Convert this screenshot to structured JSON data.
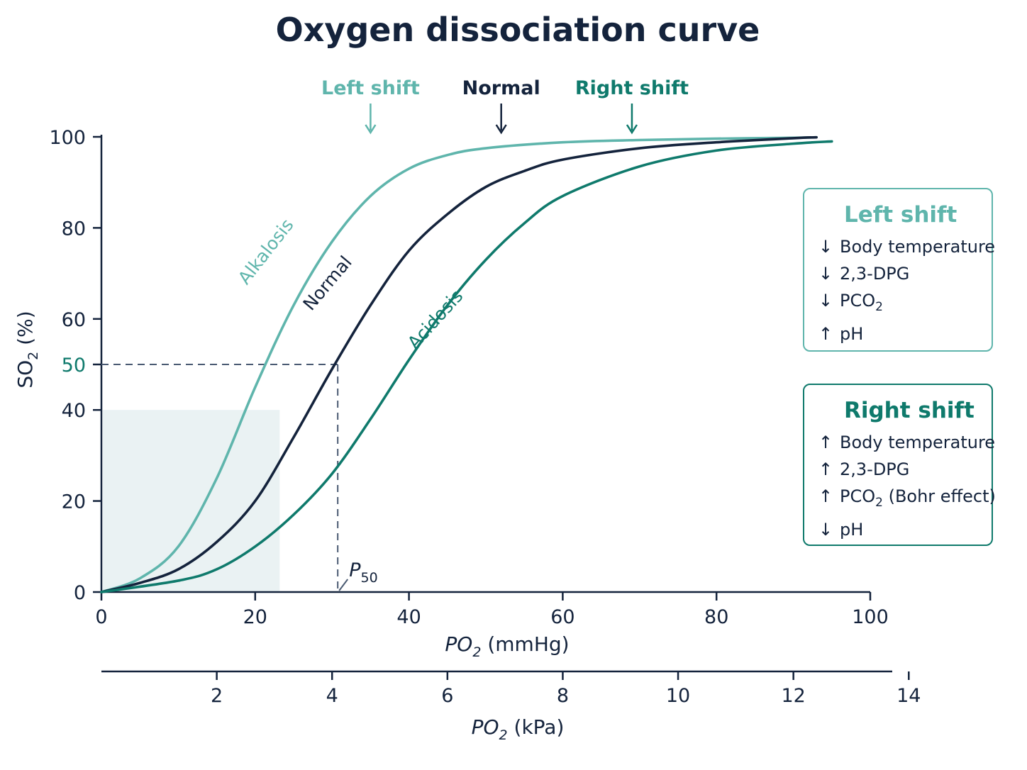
{
  "chart_data": {
    "type": "line",
    "title": "Oxygen dissociation curve",
    "xlabel_main": "PO",
    "xlabel_sub": "2",
    "xlabel_unit": " (mmHg)",
    "x2label_main": "PO",
    "x2label_sub": "2",
    "x2label_unit": " (kPa)",
    "ylabel_main": "SO",
    "ylabel_sub": "2",
    "ylabel_unit": " (%)",
    "xlim": [
      0,
      100
    ],
    "ylim": [
      0,
      100
    ],
    "x_ticks": [
      "0",
      "20",
      "40",
      "60",
      "80",
      "100"
    ],
    "y_ticks": [
      "0",
      "20",
      "40",
      "50",
      "60",
      "80",
      "100"
    ],
    "x2_ticks": [
      "2",
      "4",
      "6",
      "8",
      "10",
      "12",
      "14"
    ],
    "series": [
      {
        "name": "Alkalosis",
        "color": "#5fb5ac",
        "x": [
          0,
          5,
          10,
          15,
          20,
          25,
          30,
          35,
          40,
          45,
          50,
          60,
          70,
          80,
          90,
          93
        ],
        "y": [
          0,
          3,
          10,
          25,
          45,
          63,
          77,
          87,
          93,
          96,
          97.5,
          98.8,
          99.3,
          99.6,
          99.8,
          99.9
        ]
      },
      {
        "name": "Normal",
        "color": "#14233c",
        "x": [
          0,
          5,
          10,
          15,
          20,
          25,
          30,
          35,
          40,
          45,
          50,
          55,
          60,
          70,
          80,
          90,
          93
        ],
        "y": [
          0,
          2,
          5,
          11,
          20,
          34,
          49,
          63,
          75,
          83,
          89,
          92.5,
          95,
          97.5,
          98.8,
          99.7,
          99.9
        ]
      },
      {
        "name": "Acidosis",
        "color": "#0f7a6c",
        "x": [
          0,
          10,
          15,
          20,
          25,
          30,
          35,
          40,
          45,
          50,
          55,
          60,
          70,
          80,
          90,
          95
        ],
        "y": [
          0,
          2.5,
          5,
          10,
          17,
          26,
          38,
          51,
          63,
          73,
          81,
          87,
          93.5,
          97,
          98.5,
          99
        ]
      }
    ],
    "p50": {
      "x": 30,
      "y": 50,
      "label_main": "P",
      "label_sub": "50"
    },
    "highlight_region": {
      "x": [
        0,
        23
      ],
      "y": [
        0,
        40
      ]
    },
    "top_labels": [
      {
        "text": "Left shift",
        "color": "#5fb5ac",
        "x": 35
      },
      {
        "text": "Normal",
        "color": "#14233c",
        "x": 52
      },
      {
        "text": "Right shift",
        "color": "#0f7a6c",
        "x": 69
      }
    ],
    "grid": false
  },
  "legend_left": {
    "title": "Left shift",
    "items": [
      {
        "arrow": "↓",
        "text": "Body temperature",
        "sub": "",
        "tail": ""
      },
      {
        "arrow": "↓",
        "text": "2,3-DPG",
        "sub": "",
        "tail": ""
      },
      {
        "arrow": "↓",
        "text": "PCO",
        "sub": "2",
        "tail": ""
      },
      {
        "arrow": "↑",
        "text": "pH",
        "sub": "",
        "tail": ""
      }
    ]
  },
  "legend_right": {
    "title": "Right shift",
    "items": [
      {
        "arrow": "↑",
        "text": "Body temperature",
        "sub": "",
        "tail": ""
      },
      {
        "arrow": "↑",
        "text": "2,3-DPG",
        "sub": "",
        "tail": ""
      },
      {
        "arrow": "↑",
        "text": "PCO",
        "sub": "2",
        "tail": " (Bohr effect)"
      },
      {
        "arrow": "↓",
        "text": "pH",
        "sub": "",
        "tail": ""
      }
    ]
  }
}
